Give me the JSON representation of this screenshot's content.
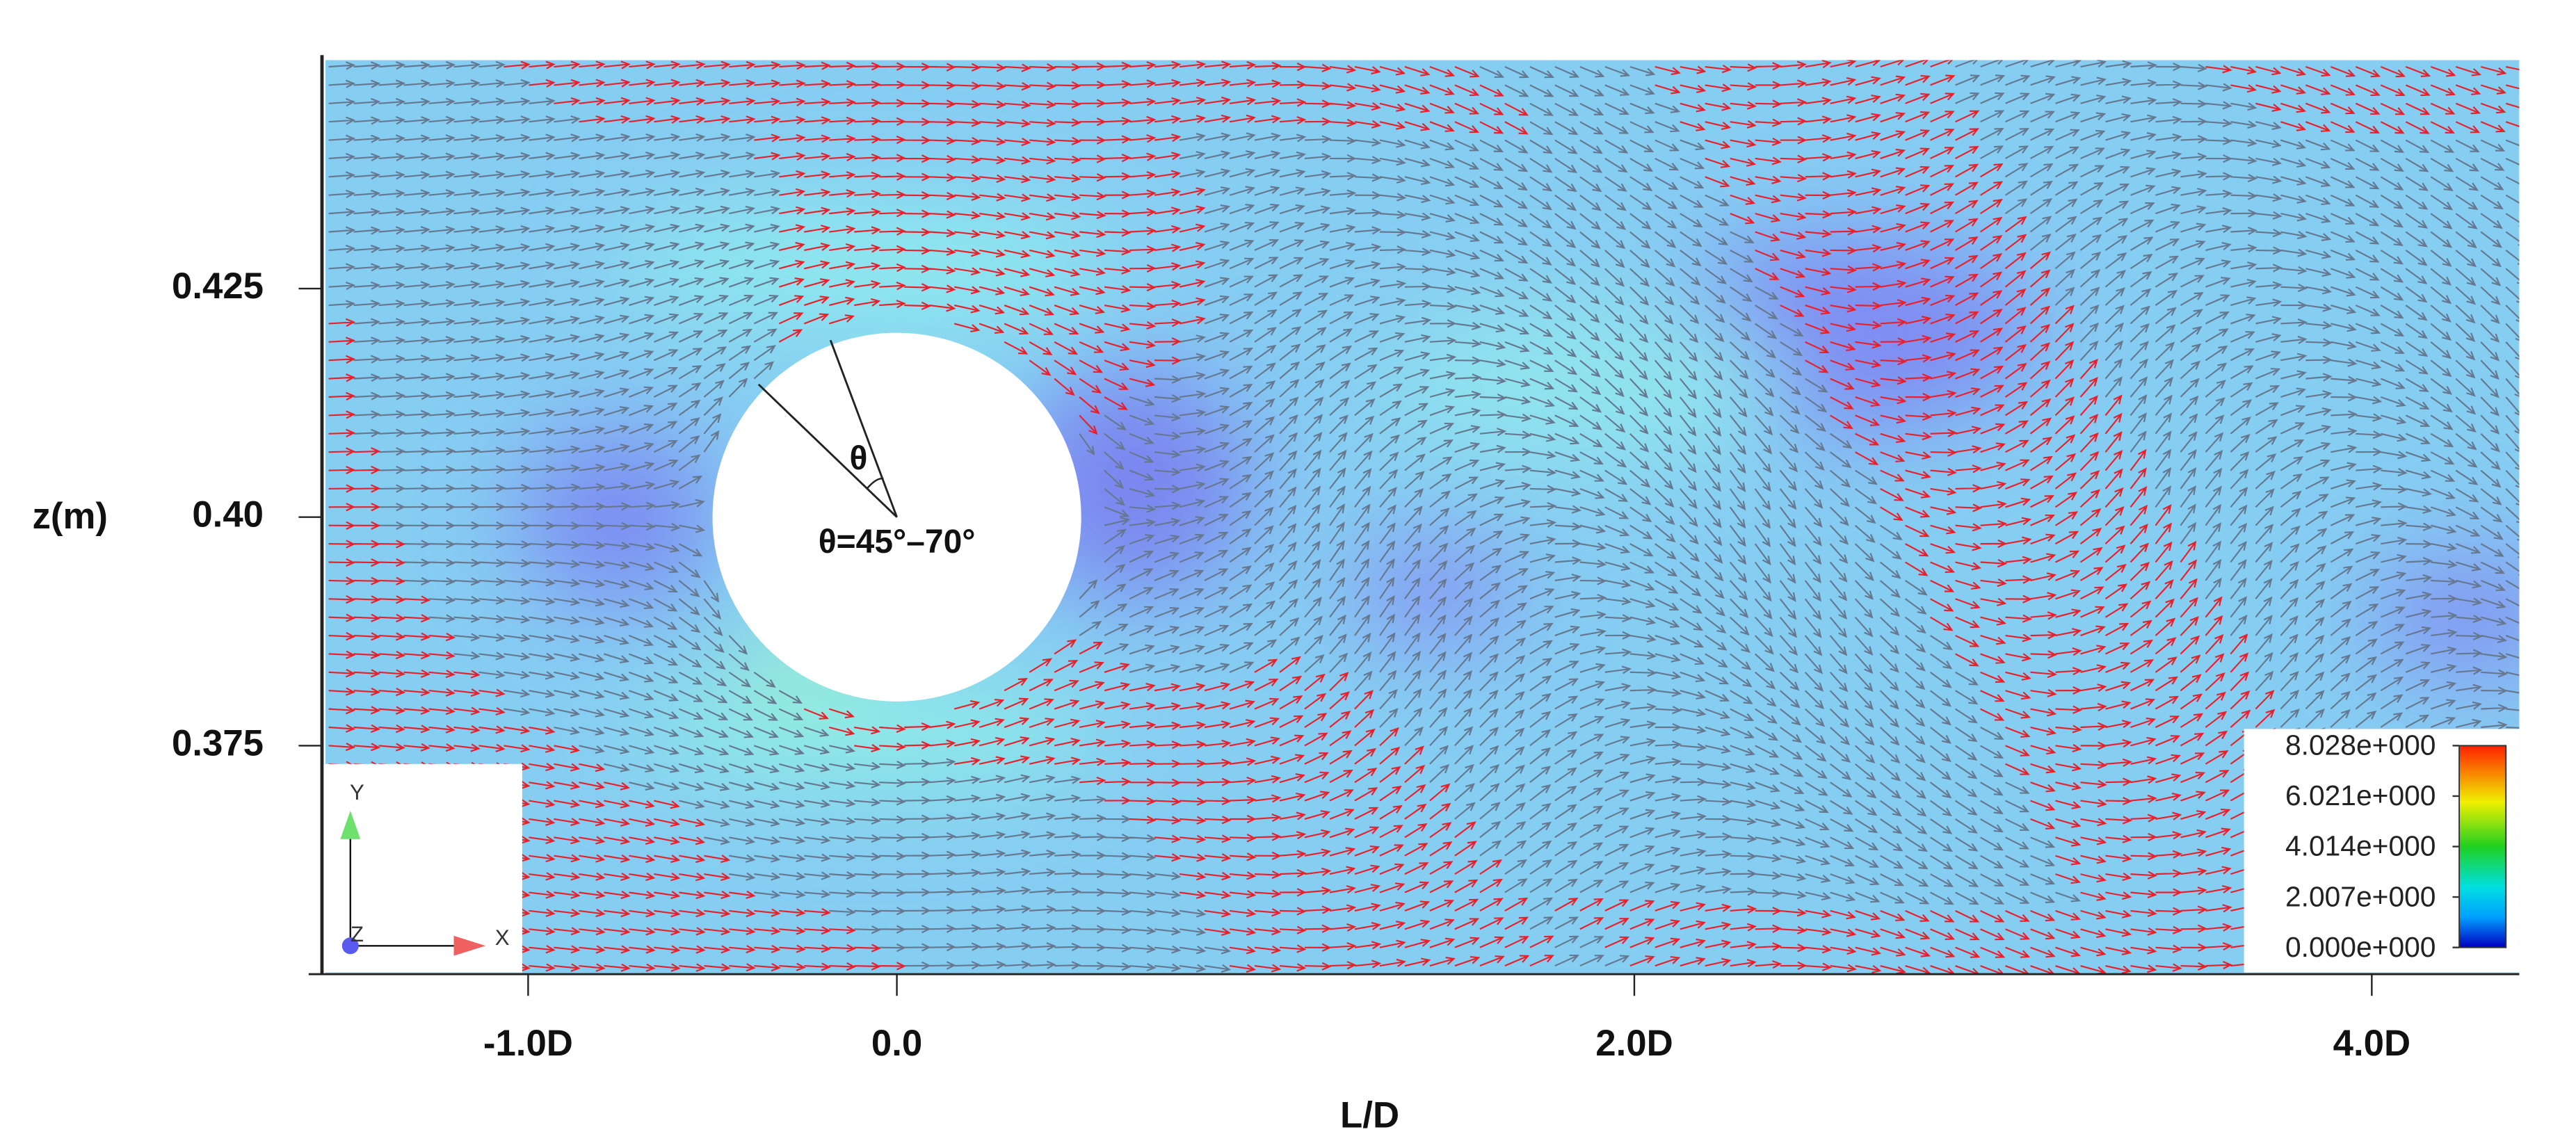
{
  "chart_data": {
    "type": "vector-field",
    "x_label": "L/D",
    "y_label": "z(m)",
    "xlim": [
      -1.55,
      4.4
    ],
    "ylim": [
      0.35,
      0.45
    ],
    "xticks": [
      {
        "value": -1,
        "label": "-1.0D"
      },
      {
        "value": 0,
        "label": "0.0"
      },
      {
        "value": 2,
        "label": "2.0D"
      },
      {
        "value": 4,
        "label": "4.0D"
      }
    ],
    "yticks": [
      0.375,
      {
        "value": 0.4,
        "label": "0.40"
      },
      0.425
    ],
    "annotations": [
      "θ",
      "θ=45°–70°"
    ],
    "colorbar": {
      "lim": [
        0,
        8.028
      ],
      "ticks": [
        {
          "value": 0,
          "label": "0.000e+000"
        },
        {
          "value": 2.007,
          "label": "2.007e+000"
        },
        {
          "value": 4.014,
          "label": "4.014e+000"
        },
        {
          "value": 6.021,
          "label": "6.021e+000"
        },
        {
          "value": 8.028,
          "label": "8.028e+000"
        }
      ]
    },
    "axis_triad": [
      "Y",
      "X",
      "Z"
    ]
  }
}
